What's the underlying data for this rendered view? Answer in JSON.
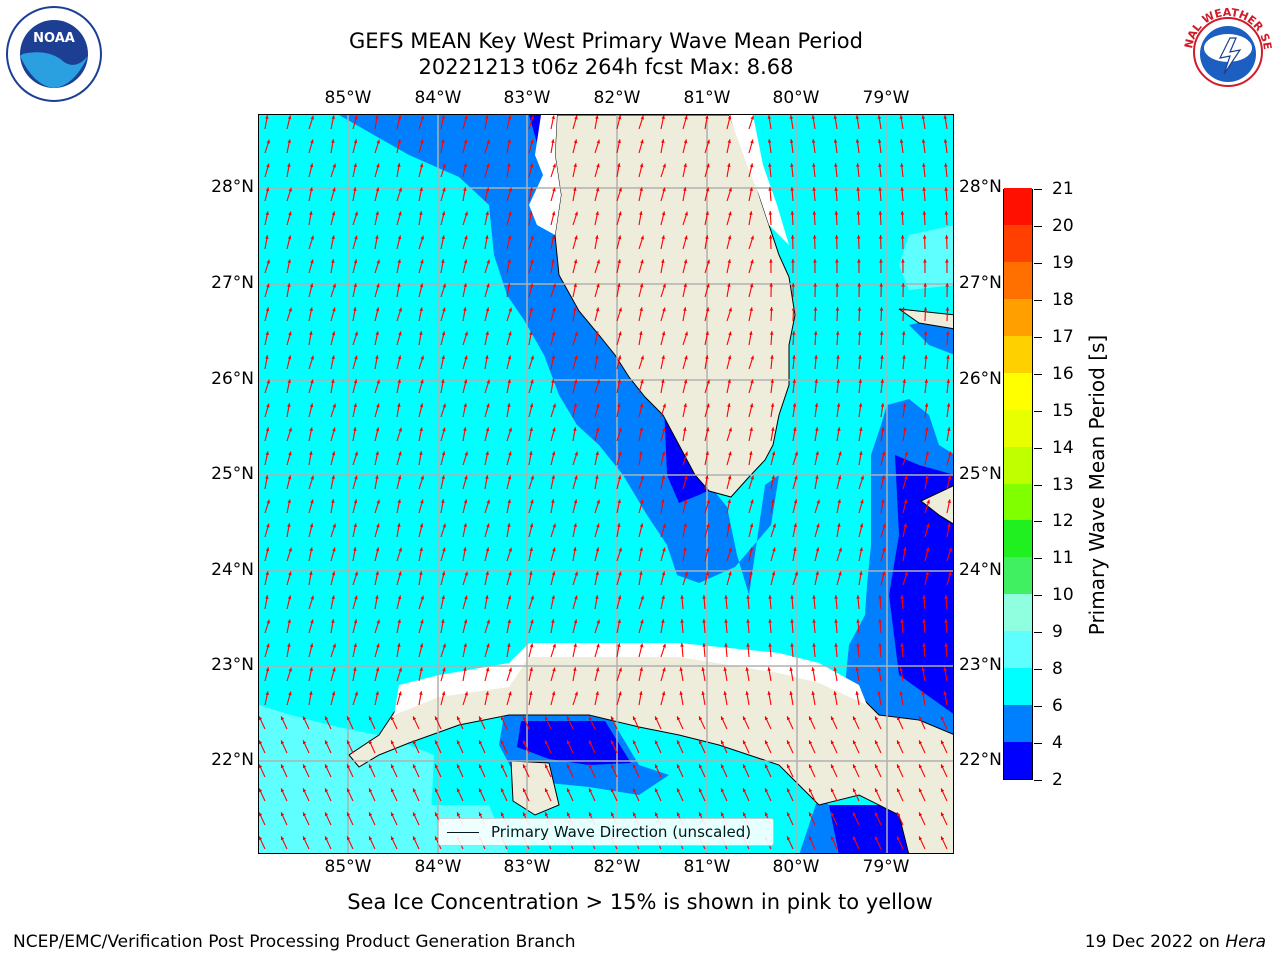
{
  "title_line1": "GEFS MEAN Key West Primary Wave Mean Period",
  "title_line2": "20221213 t06z 264h fcst   Max: 8.68",
  "lon_labels": [
    "85°W",
    "84°W",
    "83°W",
    "82°W",
    "81°W",
    "80°W",
    "79°W"
  ],
  "lat_labels": [
    "28°N",
    "27°N",
    "26°N",
    "25°N",
    "24°N",
    "23°N",
    "22°N"
  ],
  "legend_label": "Primary Wave Direction (unscaled)",
  "colorbar": {
    "title": "Primary Wave Mean Period [s]",
    "ticks": [
      "2",
      "4",
      "6",
      "8",
      "9",
      "10",
      "11",
      "12",
      "13",
      "14",
      "15",
      "16",
      "17",
      "18",
      "19",
      "20",
      "21"
    ],
    "colors": [
      "#0000ff",
      "#0080ff",
      "#00ffff",
      "#60ffff",
      "#90ffe0",
      "#40f060",
      "#20f020",
      "#80ff00",
      "#c0ff00",
      "#e8ff00",
      "#ffff00",
      "#ffd000",
      "#ffa000",
      "#ff7000",
      "#ff4000",
      "#ff1000"
    ]
  },
  "colors": {
    "land": "#eeeddc",
    "deep_blue": "#0000ff",
    "mid_blue": "#0080ff",
    "cyan": "#00ffff",
    "light_cyan": "#60ffff",
    "arrow": "#ff0000",
    "grid": "#b0b0b0"
  },
  "subtitle": "Sea Ice Concentration > 15% is shown in pink to yellow",
  "footer_left": "NCEP/EMC/Verification Post Processing Product Generation Branch",
  "footer_right_date": "19 Dec 2022 on ",
  "footer_right_host": "Hera",
  "logo_left": "NOAA",
  "logo_right": "NATIONAL WEATHER SERVICE"
}
